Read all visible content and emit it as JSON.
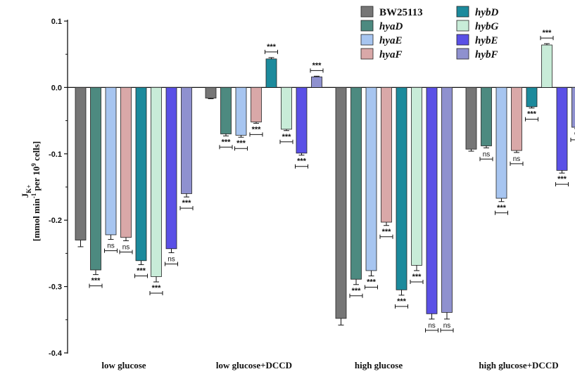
{
  "chart_data": {
    "type": "bar",
    "title": "",
    "xlabel": "",
    "ylabel_line1_main": "J",
    "ylabel_line1_sub": "K+",
    "ylabel_line2": "[mmol min",
    "ylabel_line2_sup1": "-1",
    "ylabel_line2_mid": " per 10",
    "ylabel_line2_sup2": "9",
    "ylabel_line2_end": " cells]",
    "ylim": [
      -0.4,
      0.1
    ],
    "yticks": [
      "0.1",
      "0.0",
      "-0.1",
      "-0.2",
      "-0.3",
      "-0.4"
    ],
    "categories": [
      "low glucose",
      "low glucose+DCCD",
      "high glucose",
      "high glucose+DCCD"
    ],
    "legend_position": "top-right",
    "series": [
      {
        "name": "BW25113",
        "italic": false,
        "color": "#767676",
        "values": [
          -0.23,
          -0.016,
          -0.348,
          -0.093
        ],
        "errors": [
          0.01,
          0.001,
          0.01,
          0.003
        ],
        "sig": [
          "",
          "",
          "",
          ""
        ]
      },
      {
        "name": "hyaD",
        "italic": true,
        "color": "#4d8a80",
        "values": [
          -0.275,
          -0.07,
          -0.289,
          -0.088
        ],
        "errors": [
          0.007,
          0.003,
          0.008,
          0.003
        ],
        "sig": [
          "***",
          "***",
          "***",
          "ns"
        ]
      },
      {
        "name": "hyaE",
        "italic": true,
        "color": "#a7c5f0",
        "values": [
          -0.222,
          -0.072,
          -0.276,
          -0.167
        ],
        "errors": [
          0.007,
          0.003,
          0.008,
          0.005
        ],
        "sig": [
          "ns",
          "***",
          "***",
          "***"
        ]
      },
      {
        "name": "hyaF",
        "italic": true,
        "color": "#d9a8a8",
        "values": [
          -0.226,
          -0.052,
          -0.203,
          -0.095
        ],
        "errors": [
          0.005,
          0.002,
          0.005,
          0.003
        ],
        "sig": [
          "ns",
          "***",
          "***",
          "ns"
        ]
      },
      {
        "name": "hybD",
        "italic": true,
        "color": "#1c8a9c",
        "values": [
          -0.261,
          0.043,
          -0.305,
          -0.029
        ],
        "errors": [
          0.006,
          0.002,
          0.008,
          0.002
        ],
        "sig": [
          "***",
          "***",
          "***",
          "***"
        ]
      },
      {
        "name": "hybG",
        "italic": true,
        "color": "#c8ecd8",
        "values": [
          -0.285,
          -0.063,
          -0.268,
          0.064
        ],
        "errors": [
          0.008,
          0.002,
          0.008,
          0.002
        ],
        "sig": [
          "***",
          "***",
          "***",
          "***"
        ]
      },
      {
        "name": "hybE",
        "italic": true,
        "color": "#5a50e6",
        "values": [
          -0.243,
          -0.099,
          -0.341,
          -0.125
        ],
        "errors": [
          0.006,
          0.003,
          0.008,
          0.004
        ],
        "sig": [
          "ns",
          "***",
          "ns",
          "***"
        ]
      },
      {
        "name": "hybF",
        "italic": true,
        "color": "#8f91cf",
        "values": [
          -0.16,
          0.016,
          -0.339,
          -0.06
        ],
        "errors": [
          0.005,
          0.001,
          0.01,
          0.002
        ],
        "sig": [
          "***",
          "***",
          "ns",
          "**"
        ]
      }
    ]
  }
}
